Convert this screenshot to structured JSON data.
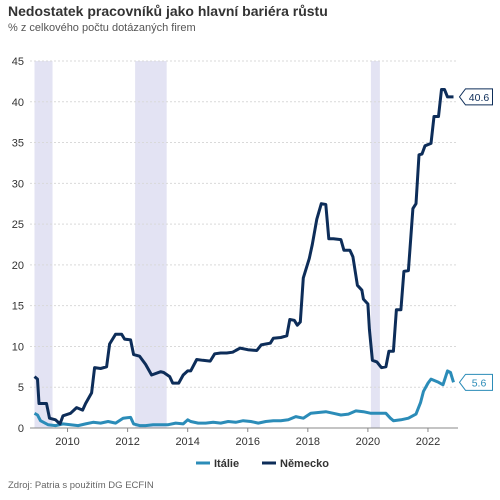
{
  "title": "Nedostatek pracovníků jako hlavní bariéra růstu",
  "subtitle": "% z celkového počtu dotázaných firem",
  "source": "Zdroj: Patria s použitím DG ECFIN",
  "colors": {
    "italy": "#2b8cb8",
    "germany": "#0d2d59",
    "recession": "#e3e3f3",
    "grid": "#d9d9d9"
  },
  "chart_data": {
    "type": "line",
    "ylim": [
      0,
      45
    ],
    "yticks": [
      0,
      5,
      10,
      15,
      20,
      25,
      30,
      35,
      40,
      45
    ],
    "xlim": [
      2008.75,
      2023.0
    ],
    "xticks": [
      2010,
      2012,
      2014,
      2016,
      2018,
      2020,
      2022
    ],
    "grid": true,
    "legend": "bottom",
    "shaded_periods": [
      [
        2008.9,
        2009.5
      ],
      [
        2012.25,
        2013.3
      ],
      [
        2020.1,
        2020.4
      ]
    ],
    "series": [
      {
        "name": "Itálie",
        "color": "#2b8cb8",
        "end_label": "5.6",
        "points": [
          [
            2008.9,
            1.8
          ],
          [
            2009.0,
            1.6
          ],
          [
            2009.1,
            0.9
          ],
          [
            2009.35,
            0.4
          ],
          [
            2009.6,
            0.3
          ],
          [
            2009.85,
            0.5
          ],
          [
            2010.1,
            0.4
          ],
          [
            2010.35,
            0.3
          ],
          [
            2010.6,
            0.5
          ],
          [
            2010.85,
            0.7
          ],
          [
            2011.1,
            0.6
          ],
          [
            2011.35,
            0.8
          ],
          [
            2011.6,
            0.6
          ],
          [
            2011.85,
            1.2
          ],
          [
            2012.1,
            1.3
          ],
          [
            2012.2,
            0.5
          ],
          [
            2012.4,
            0.3
          ],
          [
            2012.6,
            0.3
          ],
          [
            2012.85,
            0.4
          ],
          [
            2013.1,
            0.4
          ],
          [
            2013.35,
            0.4
          ],
          [
            2013.6,
            0.6
          ],
          [
            2013.85,
            0.5
          ],
          [
            2014.0,
            1.0
          ],
          [
            2014.1,
            0.8
          ],
          [
            2014.35,
            0.6
          ],
          [
            2014.6,
            0.6
          ],
          [
            2014.85,
            0.7
          ],
          [
            2015.1,
            0.6
          ],
          [
            2015.35,
            0.8
          ],
          [
            2015.6,
            0.7
          ],
          [
            2015.85,
            0.9
          ],
          [
            2016.1,
            0.8
          ],
          [
            2016.35,
            0.6
          ],
          [
            2016.6,
            0.8
          ],
          [
            2016.85,
            0.9
          ],
          [
            2017.1,
            0.9
          ],
          [
            2017.35,
            1.0
          ],
          [
            2017.6,
            1.4
          ],
          [
            2017.85,
            1.2
          ],
          [
            2018.1,
            1.8
          ],
          [
            2018.35,
            1.9
          ],
          [
            2018.6,
            2.0
          ],
          [
            2018.85,
            1.8
          ],
          [
            2019.1,
            1.6
          ],
          [
            2019.35,
            1.7
          ],
          [
            2019.6,
            2.1
          ],
          [
            2019.85,
            2.0
          ],
          [
            2020.1,
            1.8
          ],
          [
            2020.35,
            1.8
          ],
          [
            2020.6,
            1.8
          ],
          [
            2020.75,
            1.2
          ],
          [
            2020.85,
            0.9
          ],
          [
            2021.1,
            1.0
          ],
          [
            2021.35,
            1.2
          ],
          [
            2021.6,
            1.7
          ],
          [
            2021.75,
            3.1
          ],
          [
            2021.85,
            4.5
          ],
          [
            2022.0,
            5.5
          ],
          [
            2022.1,
            6.0
          ],
          [
            2022.35,
            5.6
          ],
          [
            2022.5,
            5.3
          ],
          [
            2022.65,
            7.0
          ],
          [
            2022.75,
            6.8
          ],
          [
            2022.85,
            5.6
          ]
        ]
      },
      {
        "name": "Německo",
        "color": "#0d2d59",
        "end_label": "40.6",
        "points": [
          [
            2008.9,
            6.3
          ],
          [
            2009.0,
            6.0
          ],
          [
            2009.05,
            3.0
          ],
          [
            2009.3,
            3.0
          ],
          [
            2009.4,
            1.2
          ],
          [
            2009.6,
            1.0
          ],
          [
            2009.75,
            0.5
          ],
          [
            2009.85,
            1.5
          ],
          [
            2010.1,
            1.8
          ],
          [
            2010.3,
            2.5
          ],
          [
            2010.5,
            2.2
          ],
          [
            2010.6,
            3.0
          ],
          [
            2010.8,
            4.3
          ],
          [
            2010.9,
            7.4
          ],
          [
            2011.1,
            7.3
          ],
          [
            2011.3,
            7.5
          ],
          [
            2011.4,
            10.3
          ],
          [
            2011.6,
            11.5
          ],
          [
            2011.8,
            11.5
          ],
          [
            2011.9,
            10.9
          ],
          [
            2012.1,
            10.8
          ],
          [
            2012.2,
            9.0
          ],
          [
            2012.4,
            8.8
          ],
          [
            2012.6,
            7.8
          ],
          [
            2012.8,
            6.5
          ],
          [
            2013.1,
            6.9
          ],
          [
            2013.2,
            6.8
          ],
          [
            2013.4,
            6.3
          ],
          [
            2013.5,
            5.5
          ],
          [
            2013.7,
            5.5
          ],
          [
            2013.85,
            6.5
          ],
          [
            2014.0,
            7.0
          ],
          [
            2014.1,
            7.0
          ],
          [
            2014.3,
            8.4
          ],
          [
            2014.5,
            8.3
          ],
          [
            2014.75,
            8.2
          ],
          [
            2014.9,
            9.1
          ],
          [
            2015.1,
            9.2
          ],
          [
            2015.3,
            9.2
          ],
          [
            2015.5,
            9.3
          ],
          [
            2015.6,
            9.5
          ],
          [
            2015.75,
            9.8
          ],
          [
            2016.0,
            9.6
          ],
          [
            2016.3,
            9.5
          ],
          [
            2016.45,
            10.2
          ],
          [
            2016.6,
            10.3
          ],
          [
            2016.75,
            10.4
          ],
          [
            2016.85,
            11.0
          ],
          [
            2017.1,
            11.1
          ],
          [
            2017.3,
            11.3
          ],
          [
            2017.4,
            13.3
          ],
          [
            2017.55,
            13.2
          ],
          [
            2017.65,
            12.6
          ],
          [
            2017.75,
            13.0
          ],
          [
            2017.85,
            18.4
          ],
          [
            2018.05,
            20.8
          ],
          [
            2018.15,
            22.5
          ],
          [
            2018.3,
            25.6
          ],
          [
            2018.45,
            27.5
          ],
          [
            2018.6,
            27.4
          ],
          [
            2018.7,
            23.2
          ],
          [
            2018.85,
            23.2
          ],
          [
            2019.1,
            23.1
          ],
          [
            2019.2,
            21.8
          ],
          [
            2019.4,
            21.8
          ],
          [
            2019.5,
            21.0
          ],
          [
            2019.65,
            17.5
          ],
          [
            2019.8,
            16.9
          ],
          [
            2019.85,
            15.8
          ],
          [
            2020.0,
            15.2
          ],
          [
            2020.05,
            12.1
          ],
          [
            2020.15,
            8.3
          ],
          [
            2020.3,
            8.1
          ],
          [
            2020.45,
            7.4
          ],
          [
            2020.6,
            7.5
          ],
          [
            2020.7,
            9.4
          ],
          [
            2020.85,
            9.4
          ],
          [
            2020.95,
            14.5
          ],
          [
            2021.1,
            14.5
          ],
          [
            2021.2,
            19.2
          ],
          [
            2021.35,
            19.3
          ],
          [
            2021.5,
            26.9
          ],
          [
            2021.6,
            27.5
          ],
          [
            2021.7,
            33.5
          ],
          [
            2021.8,
            33.6
          ],
          [
            2021.9,
            34.6
          ],
          [
            2022.1,
            34.9
          ],
          [
            2022.2,
            38.2
          ],
          [
            2022.35,
            38.2
          ],
          [
            2022.45,
            41.5
          ],
          [
            2022.55,
            41.5
          ],
          [
            2022.65,
            40.6
          ],
          [
            2022.85,
            40.6
          ]
        ]
      }
    ]
  }
}
